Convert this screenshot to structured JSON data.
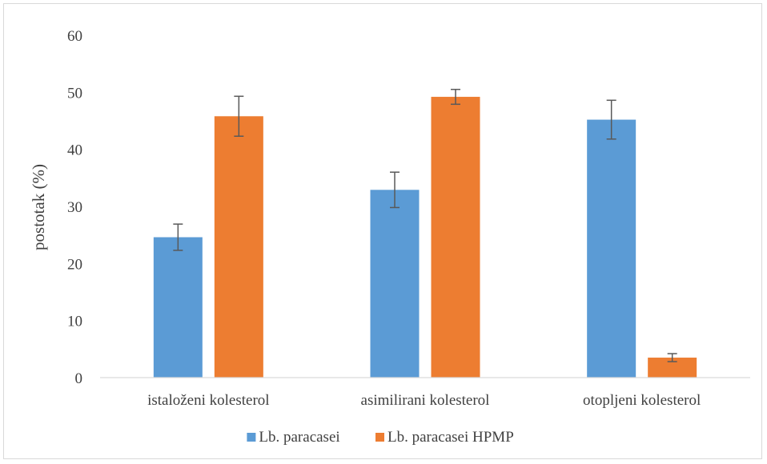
{
  "chart_data": {
    "type": "bar",
    "title": "",
    "xlabel": "",
    "ylabel": "postotak (%)",
    "ylim": [
      0,
      60
    ],
    "yticks": [
      0,
      10,
      20,
      30,
      40,
      50,
      60
    ],
    "grid": false,
    "legend_position": "bottom",
    "categories": [
      "istaloženi kolesterol",
      "asimilirani kolesterol",
      "otopljeni kolesterol"
    ],
    "series": [
      {
        "name": "Lb. paracasei",
        "color": "#5b9bd5",
        "values": [
          24.6,
          32.9,
          45.2
        ],
        "errors": [
          2.3,
          3.1,
          3.4
        ]
      },
      {
        "name": "Lb. paracasei HPMP",
        "color": "#ed7d31",
        "values": [
          45.8,
          49.2,
          3.5
        ],
        "errors": [
          3.5,
          1.3,
          0.7
        ]
      }
    ]
  }
}
